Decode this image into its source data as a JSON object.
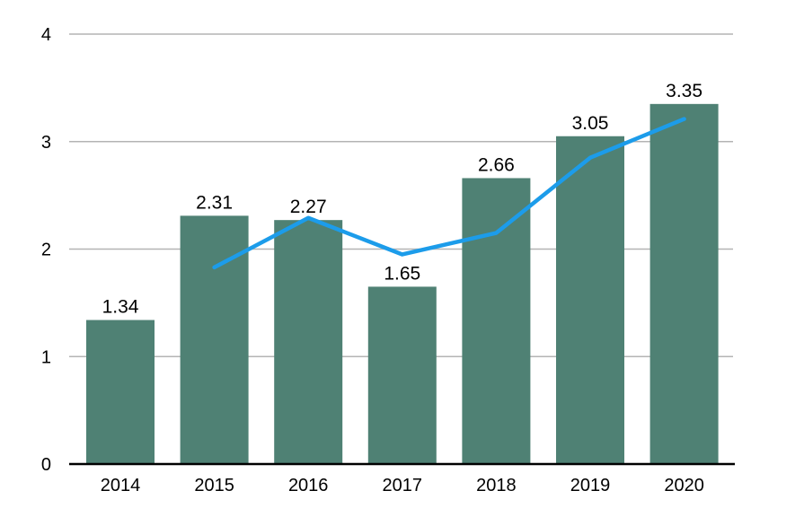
{
  "chart_data": {
    "type": "bar",
    "title": "",
    "xlabel": "",
    "ylabel": "",
    "categories": [
      "2014",
      "2015",
      "2016",
      "2017",
      "2018",
      "2019",
      "2020"
    ],
    "series": [
      {
        "name": "annual-value-bars",
        "type": "bar",
        "color": "#4f8174",
        "values": [
          1.34,
          2.31,
          2.27,
          1.65,
          2.66,
          3.05,
          3.35
        ],
        "data_labels": [
          "1.34",
          "2.31",
          "2.27",
          "1.65",
          "2.66",
          "3.05",
          "3.35"
        ]
      },
      {
        "name": "trend-line-unlabeled",
        "type": "line",
        "color": "#1c9cea",
        "values": [
          null,
          1.83,
          2.29,
          1.95,
          2.15,
          2.85,
          3.21
        ]
      }
    ],
    "ylim": [
      0,
      4
    ],
    "yticks": [
      0,
      1,
      2,
      3,
      4
    ],
    "grid": true,
    "legend_position": "none",
    "gridline_color": "#b4b4b4",
    "axis_color": "#000000",
    "text_color": "#000000",
    "background": "#ffffff"
  }
}
